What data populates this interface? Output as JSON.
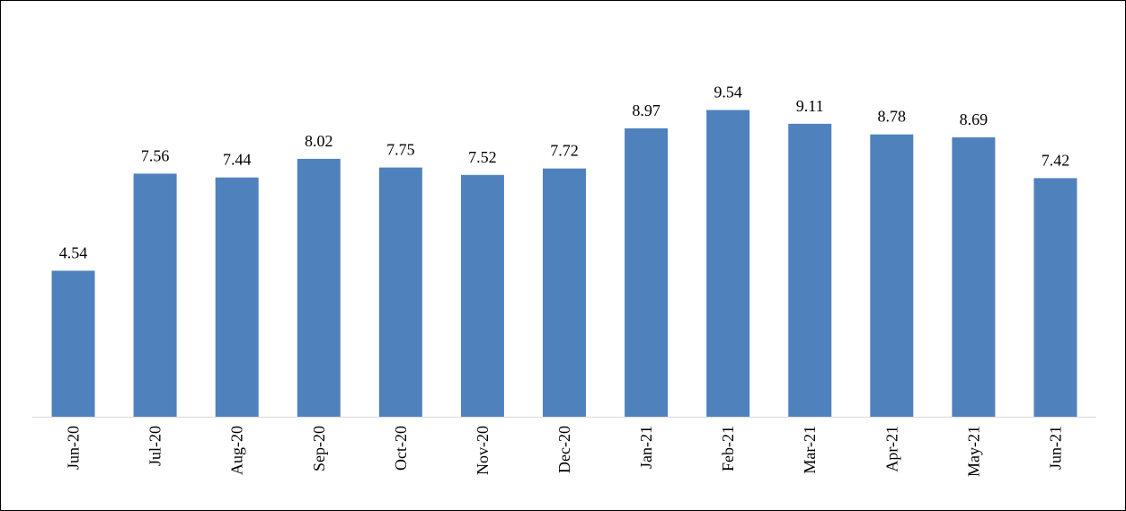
{
  "chart_data": {
    "type": "bar",
    "categories": [
      "Jun-20",
      "Jul-20",
      "Aug-20",
      "Sep-20",
      "Oct-20",
      "Nov-20",
      "Dec-20",
      "Jan-21",
      "Feb-21",
      "Mar-21",
      "Apr-21",
      "May-21",
      "Jun-21"
    ],
    "values": [
      4.54,
      7.56,
      7.44,
      8.02,
      7.75,
      7.52,
      7.72,
      8.97,
      9.54,
      9.11,
      8.78,
      8.69,
      7.42
    ],
    "color": "#4f81bd"
  }
}
